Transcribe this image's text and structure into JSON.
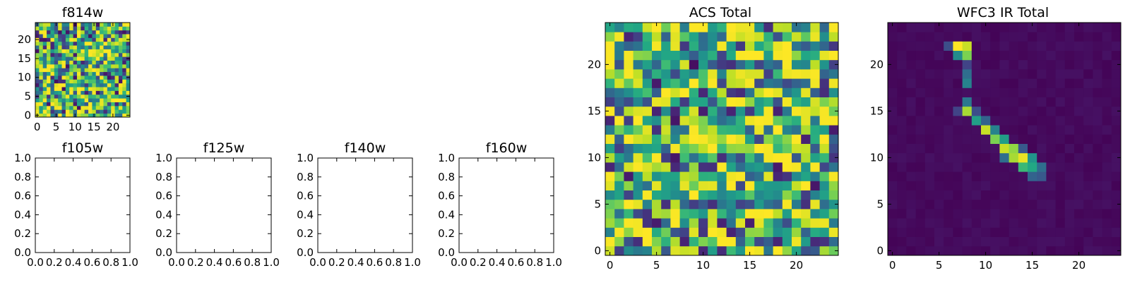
{
  "chart_data": [
    {
      "type": "heatmap",
      "title": "f814w",
      "xlabel": "",
      "ylabel": "",
      "grid_size": 25,
      "xlim": [
        -0.5,
        24.5
      ],
      "ylim": [
        -0.5,
        24.5
      ],
      "xticks": [
        0,
        5,
        10,
        15,
        20
      ],
      "yticks": [
        0,
        5,
        10,
        15,
        20
      ],
      "colormap": "viridis",
      "pattern": "noise",
      "seed": 11
    },
    {
      "type": "empty",
      "title": "f105w",
      "xlim": [
        0.0,
        1.0
      ],
      "ylim": [
        0.0,
        1.0
      ],
      "xticks": [
        "0.0",
        "0.2",
        "0.4",
        "0.6",
        "0.8",
        "1.0"
      ],
      "yticks": [
        "0.0",
        "0.2",
        "0.4",
        "0.6",
        "0.8",
        "1.0"
      ]
    },
    {
      "type": "empty",
      "title": "f125w",
      "xlim": [
        0.0,
        1.0
      ],
      "ylim": [
        0.0,
        1.0
      ],
      "xticks": [
        "0.0",
        "0.2",
        "0.4",
        "0.6",
        "0.8",
        "1.0"
      ],
      "yticks": [
        "0.0",
        "0.2",
        "0.4",
        "0.6",
        "0.8",
        "1.0"
      ]
    },
    {
      "type": "empty",
      "title": "f140w",
      "xlim": [
        0.0,
        1.0
      ],
      "ylim": [
        0.0,
        1.0
      ],
      "xticks": [
        "0.0",
        "0.2",
        "0.4",
        "0.6",
        "0.8",
        "1.0"
      ],
      "yticks": [
        "0.0",
        "0.2",
        "0.4",
        "0.6",
        "0.8",
        "1.0"
      ]
    },
    {
      "type": "empty",
      "title": "f160w",
      "xlim": [
        0.0,
        1.0
      ],
      "ylim": [
        0.0,
        1.0
      ],
      "xticks": [
        "0.0",
        "0.2",
        "0.4",
        "0.6",
        "0.8",
        "1.0"
      ],
      "yticks": [
        "0.0",
        "0.2",
        "0.4",
        "0.6",
        "0.8",
        "1.0"
      ]
    },
    {
      "type": "heatmap",
      "title": "ACS Total",
      "grid_size": 25,
      "xlim": [
        -0.5,
        24.5
      ],
      "ylim": [
        -0.5,
        24.5
      ],
      "xticks": [
        0,
        5,
        10,
        15,
        20
      ],
      "yticks": [
        0,
        5,
        10,
        15,
        20
      ],
      "colormap": "viridis",
      "pattern": "noise",
      "seed": 29
    },
    {
      "type": "heatmap",
      "title": "WFC3 IR Total",
      "grid_size": 25,
      "xlim": [
        -0.5,
        24.5
      ],
      "ylim": [
        -0.5,
        24.5
      ],
      "xticks": [
        0,
        5,
        10,
        15,
        20
      ],
      "yticks": [
        0,
        5,
        10,
        15,
        20
      ],
      "colormap": "viridis",
      "pattern": "dark",
      "seed": 47,
      "bright_cells": [
        {
          "x": 6,
          "y": 22,
          "v": 0.3
        },
        {
          "x": 7,
          "y": 22,
          "v": 1.0
        },
        {
          "x": 8,
          "y": 22,
          "v": 0.95
        },
        {
          "x": 7,
          "y": 21,
          "v": 0.6
        },
        {
          "x": 8,
          "y": 21,
          "v": 0.88
        },
        {
          "x": 8,
          "y": 20,
          "v": 0.25
        },
        {
          "x": 8,
          "y": 19,
          "v": 0.45
        },
        {
          "x": 8,
          "y": 18,
          "v": 0.55
        },
        {
          "x": 8,
          "y": 16,
          "v": 0.5
        },
        {
          "x": 8,
          "y": 15,
          "v": 0.92
        },
        {
          "x": 7,
          "y": 15,
          "v": 0.25
        },
        {
          "x": 9,
          "y": 15,
          "v": 0.3
        },
        {
          "x": 9,
          "y": 14,
          "v": 0.7
        },
        {
          "x": 10,
          "y": 14,
          "v": 0.4
        },
        {
          "x": 10,
          "y": 13,
          "v": 0.95
        },
        {
          "x": 11,
          "y": 13,
          "v": 0.55
        },
        {
          "x": 11,
          "y": 12,
          "v": 0.88
        },
        {
          "x": 12,
          "y": 12,
          "v": 0.7
        },
        {
          "x": 12,
          "y": 11,
          "v": 0.95
        },
        {
          "x": 13,
          "y": 11,
          "v": 0.9
        },
        {
          "x": 14,
          "y": 11,
          "v": 0.35
        },
        {
          "x": 12,
          "y": 10,
          "v": 0.45
        },
        {
          "x": 13,
          "y": 10,
          "v": 0.92
        },
        {
          "x": 14,
          "y": 10,
          "v": 0.98
        },
        {
          "x": 15,
          "y": 10,
          "v": 0.65
        },
        {
          "x": 14,
          "y": 9,
          "v": 0.8
        },
        {
          "x": 15,
          "y": 9,
          "v": 0.75
        },
        {
          "x": 16,
          "y": 9,
          "v": 0.45
        },
        {
          "x": 15,
          "y": 8,
          "v": 0.4
        },
        {
          "x": 16,
          "y": 8,
          "v": 0.35
        }
      ]
    }
  ]
}
